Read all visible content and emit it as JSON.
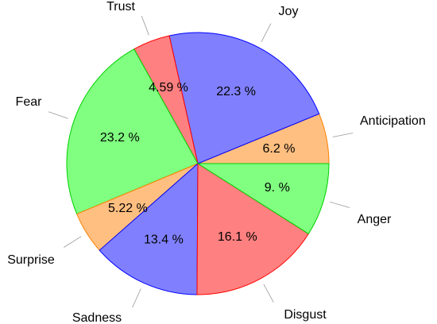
{
  "chart_data": {
    "type": "pie",
    "title": "",
    "start_angle_deg": 0,
    "direction": "counterclockwise",
    "slices": [
      {
        "label": "Anticipation",
        "value": 6.2,
        "value_label": "6.2 %",
        "fill": "#ffbf80",
        "stroke": "#ff8000"
      },
      {
        "label": "Joy",
        "value": 22.3,
        "value_label": "22.3 %",
        "fill": "#8080ff",
        "stroke": "#0000ff"
      },
      {
        "label": "Trust",
        "value": 4.59,
        "value_label": "4.59 %",
        "fill": "#ff8080",
        "stroke": "#ff0000"
      },
      {
        "label": "Fear",
        "value": 23.2,
        "value_label": "23.2 %",
        "fill": "#80ff80",
        "stroke": "#00d000"
      },
      {
        "label": "Surprise",
        "value": 5.22,
        "value_label": "5.22 %",
        "fill": "#ffbf80",
        "stroke": "#ff8000"
      },
      {
        "label": "Sadness",
        "value": 13.4,
        "value_label": "13.4 %",
        "fill": "#8080ff",
        "stroke": "#0000ff"
      },
      {
        "label": "Disgust",
        "value": 16.1,
        "value_label": "16.1 %",
        "fill": "#ff8080",
        "stroke": "#ff0000"
      },
      {
        "label": "Anger",
        "value": 9.0,
        "value_label": "9. %",
        "fill": "#80ff80",
        "stroke": "#00d000"
      }
    ]
  }
}
